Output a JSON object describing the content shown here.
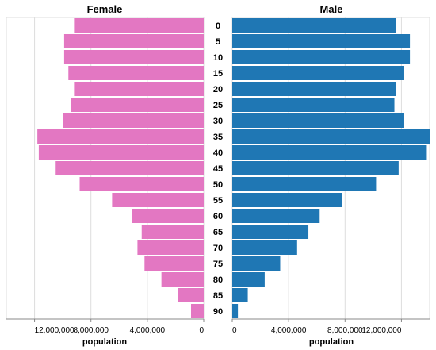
{
  "chart_data": {
    "type": "bar",
    "orientation": "horizontal",
    "layout": "population-pyramid",
    "categories": [
      "0",
      "5",
      "10",
      "15",
      "20",
      "25",
      "30",
      "35",
      "40",
      "45",
      "50",
      "55",
      "60",
      "65",
      "70",
      "75",
      "80",
      "85",
      "90"
    ],
    "series": [
      {
        "name": "Female",
        "color": "#e377c2",
        "values": [
          9200000,
          9900000,
          9900000,
          9600000,
          9200000,
          9400000,
          10000000,
          11800000,
          11700000,
          10500000,
          8800000,
          6500000,
          5100000,
          4400000,
          4700000,
          4200000,
          3000000,
          1800000,
          900000
        ]
      },
      {
        "name": "Male",
        "color": "#1f77b4",
        "values": [
          11600000,
          12600000,
          12600000,
          12200000,
          11600000,
          11500000,
          12200000,
          14000000,
          13800000,
          11800000,
          10200000,
          7800000,
          6200000,
          5400000,
          4600000,
          3400000,
          2300000,
          1100000,
          400000
        ]
      }
    ],
    "panel_titles": [
      "Female",
      "Male"
    ],
    "xlabel": "population",
    "left_xticks": [
      {
        "value": 12000000,
        "label": "12,000,000"
      },
      {
        "value": 8000000,
        "label": "8,000,000"
      },
      {
        "value": 4000000,
        "label": "4,000,000"
      },
      {
        "value": 0,
        "label": "0"
      }
    ],
    "right_xticks": [
      {
        "value": 0,
        "label": "0"
      },
      {
        "value": 4000000,
        "label": "4,000,000"
      },
      {
        "value": 8000000,
        "label": "8,000,000"
      },
      {
        "value": 12000000,
        "label": "12,000,000"
      }
    ],
    "xlim": [
      0,
      14000000
    ],
    "grid": true
  }
}
